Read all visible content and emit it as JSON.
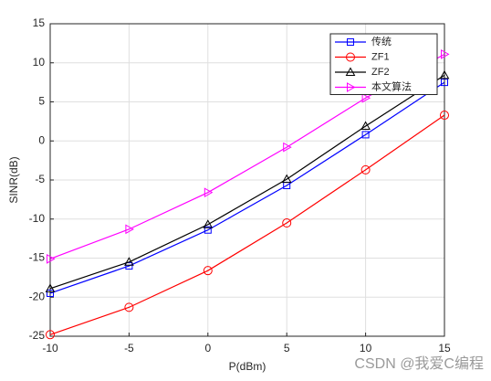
{
  "chart_data": {
    "type": "line",
    "x": [
      -10,
      -5,
      0,
      5,
      10,
      15
    ],
    "xlabel": "P(dBm)",
    "ylabel": "SINR(dB)",
    "xlim": [
      -10,
      15
    ],
    "xticks": [
      -10,
      -5,
      0,
      5,
      10,
      15
    ],
    "ylim": [
      -25,
      15
    ],
    "yticks": [
      -25,
      -20,
      -15,
      -10,
      -5,
      0,
      5,
      10,
      15
    ],
    "grid": true,
    "legend": "upper right",
    "series": [
      {
        "name": "传统",
        "color": "#0000ff",
        "marker": "square",
        "values": [
          -19.5,
          -16.0,
          -11.4,
          -5.7,
          0.8,
          7.5
        ]
      },
      {
        "name": "ZF1",
        "color": "#ff0000",
        "marker": "circle",
        "values": [
          -24.8,
          -21.3,
          -16.6,
          -10.5,
          -3.7,
          3.3
        ]
      },
      {
        "name": "ZF2",
        "color": "#000000",
        "marker": "triangle",
        "values": [
          -18.9,
          -15.5,
          -10.7,
          -4.9,
          1.9,
          8.4
        ]
      },
      {
        "name": "本文算法",
        "color": "#ff00ff",
        "marker": "triangle-right",
        "values": [
          -15.1,
          -11.3,
          -6.6,
          -0.8,
          5.5,
          11.1
        ]
      }
    ],
    "watermark": "CSDN @我爱C编程"
  }
}
